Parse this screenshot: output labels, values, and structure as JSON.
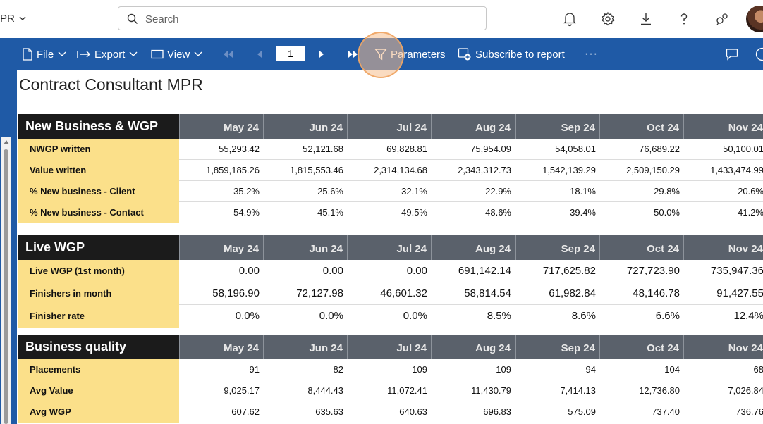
{
  "app": {
    "name": "PR"
  },
  "search": {
    "placeholder": "Search"
  },
  "toolbar": {
    "file": "File",
    "export": "Export",
    "view": "View",
    "page_number": "1",
    "parameters": "Parameters",
    "subscribe": "Subscribe to report",
    "more": "···"
  },
  "report": {
    "title": "Contract Consultant MPR",
    "months": [
      "May 24",
      "Jun 24",
      "Jul 24",
      "Aug 24",
      "Sep 24",
      "Oct 24",
      "Nov 24"
    ],
    "sections": [
      {
        "title": "New Business & WGP",
        "rows": [
          {
            "label": "NWGP written",
            "values": [
              "55,293.42",
              "52,121.68",
              "69,828.81",
              "75,954.09",
              "54,058.01",
              "76,689.22",
              "50,100.01"
            ]
          },
          {
            "label": "Value written",
            "values": [
              "1,859,185.26",
              "1,815,553.46",
              "2,314,134.68",
              "2,343,312.73",
              "1,542,139.29",
              "2,509,150.29",
              "1,433,474.99"
            ]
          },
          {
            "label": "% New business - Client",
            "values": [
              "35.2%",
              "25.6%",
              "32.1%",
              "22.9%",
              "18.1%",
              "29.8%",
              "20.6%"
            ]
          },
          {
            "label": "% New business - Contact",
            "values": [
              "54.9%",
              "45.1%",
              "49.5%",
              "48.6%",
              "39.4%",
              "50.0%",
              "41.2%"
            ]
          }
        ]
      },
      {
        "title": "Live WGP",
        "rows": [
          {
            "label": "Live WGP (1st month)",
            "values": [
              "0.00",
              "0.00",
              "0.00",
              "691,142.14",
              "717,625.82",
              "727,723.90",
              "735,947.36"
            ]
          },
          {
            "label": "Finishers in month",
            "values": [
              "58,196.90",
              "72,127.98",
              "46,601.32",
              "58,814.54",
              "61,982.84",
              "48,146.78",
              "91,427.55"
            ]
          },
          {
            "label": "Finisher rate",
            "values": [
              "0.0%",
              "0.0%",
              "0.0%",
              "8.5%",
              "8.6%",
              "6.6%",
              "12.4%"
            ]
          }
        ]
      },
      {
        "title": "Business quality",
        "rows": [
          {
            "label": "Placements",
            "values": [
              "91",
              "82",
              "109",
              "109",
              "94",
              "104",
              "68"
            ]
          },
          {
            "label": "Avg Value",
            "values": [
              "9,025.17",
              "8,444.43",
              "11,072.41",
              "11,430.79",
              "7,414.13",
              "12,736.80",
              "7,026.84"
            ]
          },
          {
            "label": "Avg WGP",
            "values": [
              "607.62",
              "635.63",
              "640.63",
              "696.83",
              "575.09",
              "737.40",
              "736.76"
            ]
          }
        ]
      }
    ]
  },
  "colors": {
    "toolbar": "#1f5aa6",
    "section_header": "#1b1b1b",
    "month_header": "#5a616b",
    "label_fill": "#fbe08a"
  }
}
